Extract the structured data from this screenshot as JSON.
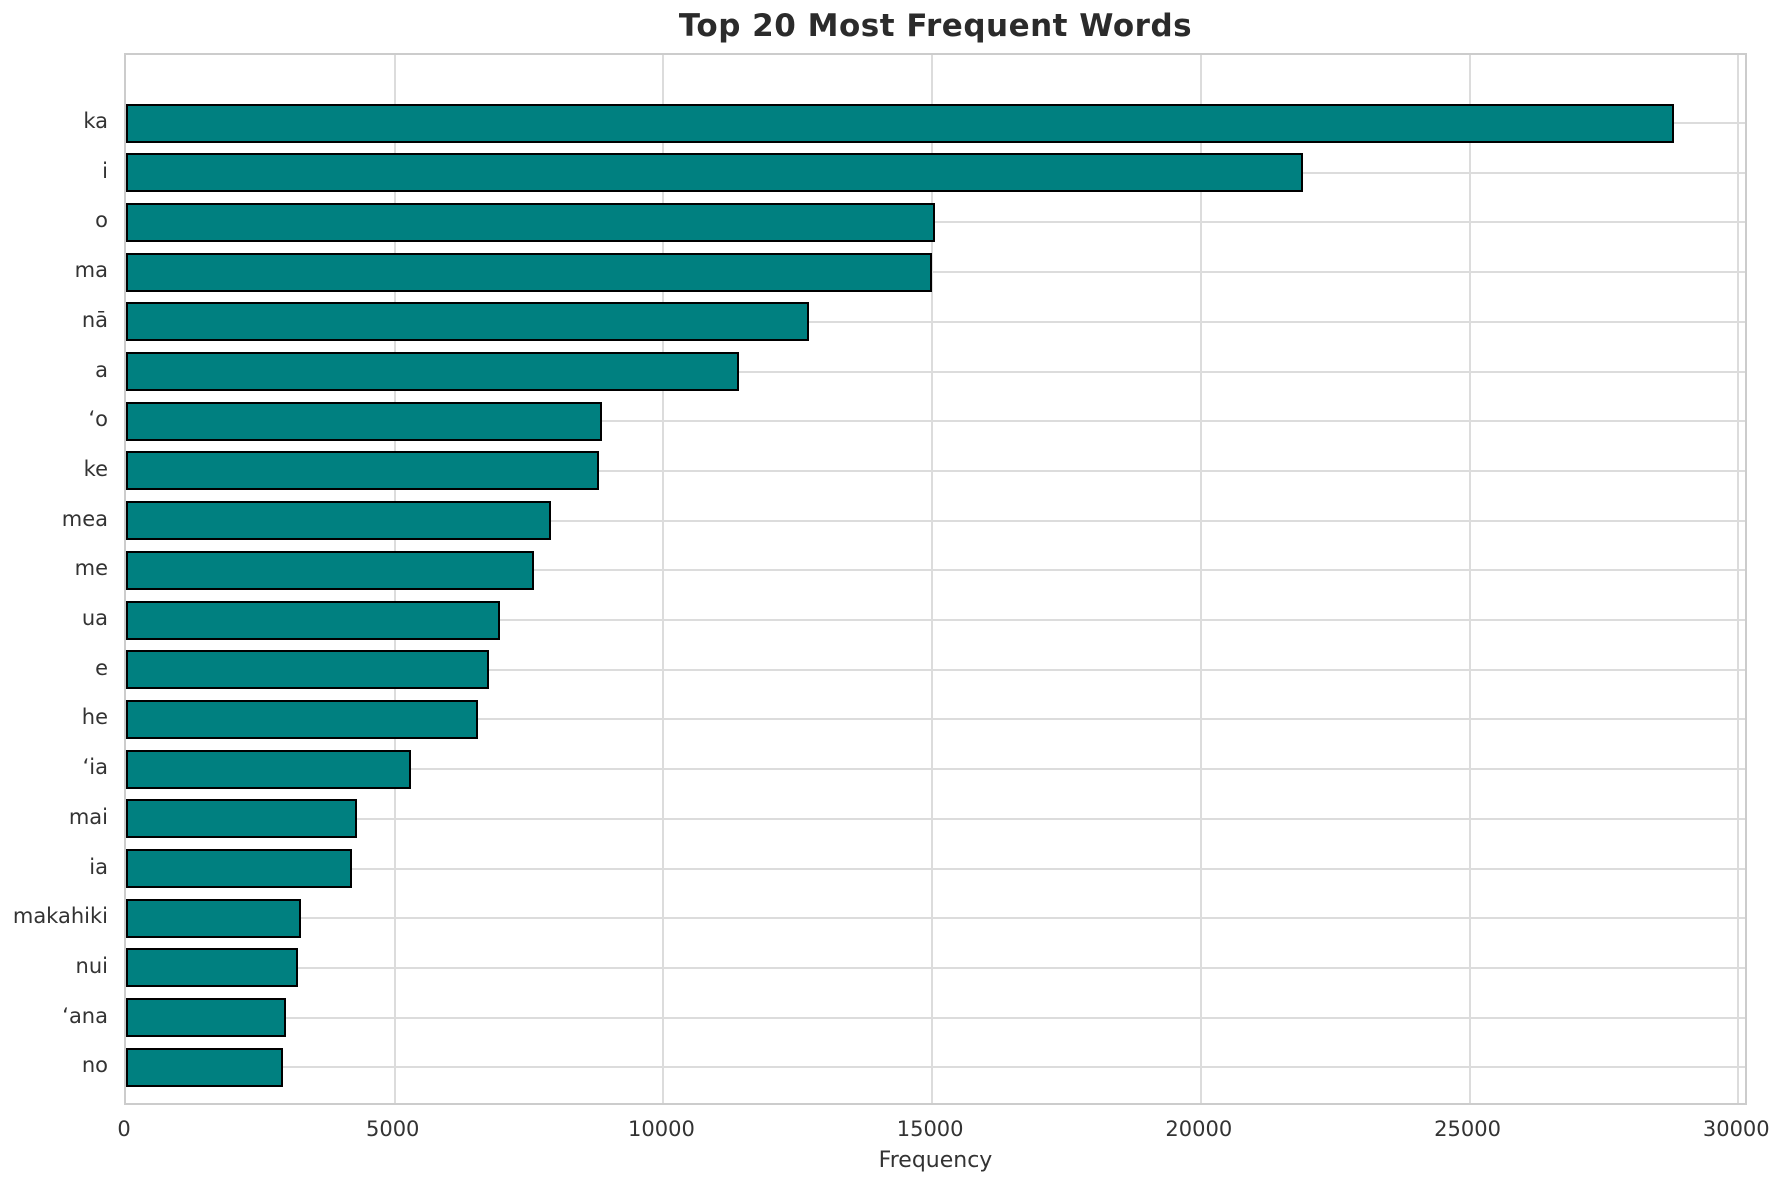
{
  "figure": {
    "background": "#ffffff"
  },
  "chart_data": {
    "type": "bar",
    "orientation": "horizontal",
    "title": "Top 20 Most Frequent Words",
    "xlabel": "Frequency",
    "ylabel": "",
    "categories": [
      "ka",
      "i",
      "o",
      "ma",
      "nā",
      "a",
      "ʻo",
      "ke",
      "mea",
      "me",
      "ua",
      "e",
      "he",
      "ʻia",
      "mai",
      "ia",
      "makahiki",
      "nui",
      "ʻana",
      "no"
    ],
    "values": [
      28800,
      21900,
      15050,
      15000,
      12700,
      11400,
      8850,
      8800,
      7900,
      7600,
      6950,
      6750,
      6550,
      5300,
      4300,
      4200,
      3250,
      3200,
      2980,
      2920
    ],
    "x_ticks": [
      0,
      5000,
      10000,
      15000,
      20000,
      25000,
      30000
    ],
    "xlim": [
      0,
      30200
    ],
    "grid": true,
    "legend": "none",
    "bar_color": "#008080",
    "bar_edge_color": "#000000",
    "grid_color": "#dcdcdc",
    "spine_color": "#cccccc",
    "title_color": "#2b2b2b",
    "tick_color": "#333333"
  }
}
